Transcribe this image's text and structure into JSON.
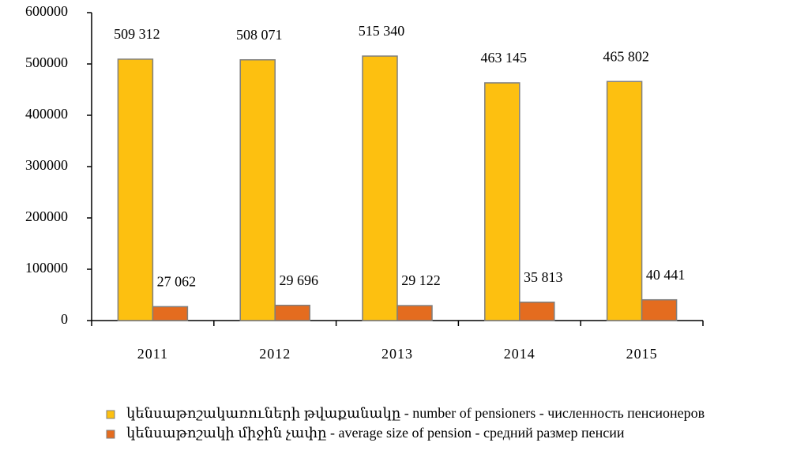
{
  "chart_data": {
    "type": "bar",
    "categories": [
      "2011",
      "2012",
      "2013",
      "2014",
      "2015"
    ],
    "series": [
      {
        "name": "կենսաթոշակառուների թվաքանակը - number of pensioners - численность пенсионеров",
        "color": "#fdc010",
        "values": [
          509312,
          508071,
          515340,
          463145,
          465802
        ],
        "value_labels": [
          "509 312",
          "508 071",
          "515 340",
          "463 145",
          "465 802"
        ]
      },
      {
        "name": "կենսաթոշակի միջին չափը - average size of pension - средний размер пенсии",
        "color": "#e46c1f",
        "values": [
          27062,
          29696,
          29122,
          35813,
          40441
        ],
        "value_labels": [
          "27 062",
          "29 696",
          "29 122",
          "35 813",
          "40 441"
        ]
      }
    ],
    "ylim": [
      0,
      600000
    ],
    "yticks": [
      0,
      100000,
      200000,
      300000,
      400000,
      500000,
      600000
    ],
    "legend": "bottom"
  }
}
